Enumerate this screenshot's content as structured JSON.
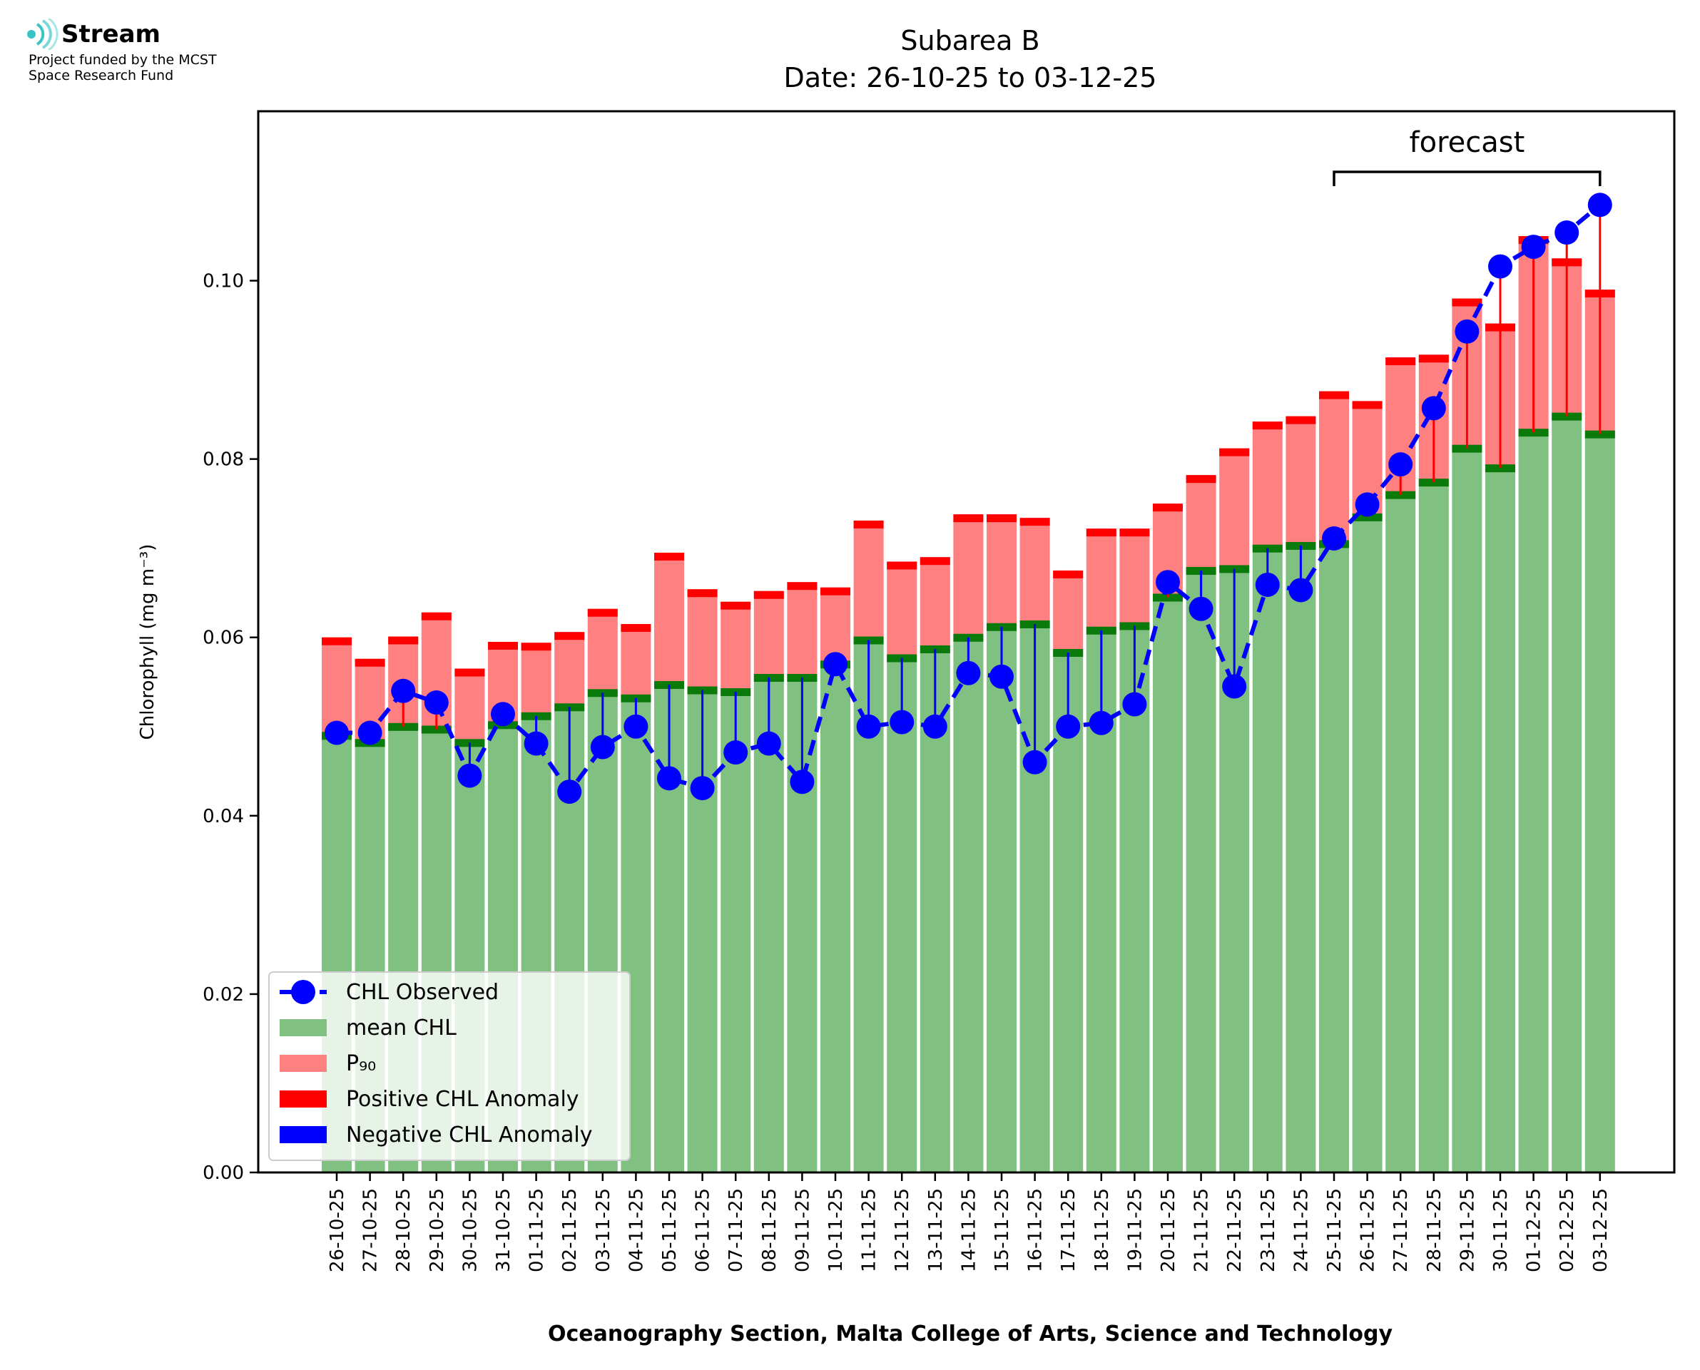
{
  "logo": {
    "brand": "Stream",
    "line1": "Project funded by the MCST",
    "line2": "Space Research Fund"
  },
  "chart_data": {
    "type": "bar",
    "title_line1": "Subarea B",
    "title_line2": "Date: 26-10-25 to 03-12-25",
    "xlabel": "Oceanography Section, Malta College of Arts, Science and Technology",
    "ylabel": "Chlorophyll (mg m⁻³)",
    "ylim": [
      0,
      0.119
    ],
    "yticks": [
      0.0,
      0.02,
      0.04,
      0.06,
      0.08,
      0.1
    ],
    "ytick_labels": [
      "0.00",
      "0.02",
      "0.04",
      "0.06",
      "0.08",
      "0.10"
    ],
    "forecast_label": "forecast",
    "forecast_start": "25-11-25",
    "forecast_end": "03-12-25",
    "legend": {
      "position": "lower left",
      "entries": [
        "CHL Observed",
        "mean CHL",
        "P₉₀",
        "Positive CHL Anomaly",
        "Negative CHL Anomaly"
      ]
    },
    "colors": {
      "mean": "#80c080",
      "mean_edge": "#0a7a0a",
      "p90": "#ff8080",
      "p90_edge": "#ff0000",
      "observed": "#0000ff",
      "positive_anomaly": "#ff0000",
      "negative_anomaly": "#0000ff"
    },
    "categories": [
      "26-10-25",
      "27-10-25",
      "28-10-25",
      "29-10-25",
      "30-10-25",
      "31-10-25",
      "01-11-25",
      "02-11-25",
      "03-11-25",
      "04-11-25",
      "05-11-25",
      "06-11-25",
      "07-11-25",
      "08-11-25",
      "09-11-25",
      "10-11-25",
      "11-11-25",
      "12-11-25",
      "13-11-25",
      "14-11-25",
      "15-11-25",
      "16-11-25",
      "17-11-25",
      "18-11-25",
      "19-11-25",
      "20-11-25",
      "21-11-25",
      "22-11-25",
      "23-11-25",
      "24-11-25",
      "25-11-25",
      "26-11-25",
      "27-11-25",
      "28-11-25",
      "29-11-25",
      "30-11-25",
      "01-12-25",
      "02-12-25",
      "03-12-25"
    ],
    "series": [
      {
        "name": "mean CHL",
        "values": [
          0.049,
          0.0482,
          0.05,
          0.0497,
          0.0482,
          0.0502,
          0.0512,
          0.0522,
          0.0538,
          0.0532,
          0.0547,
          0.0541,
          0.0539,
          0.0555,
          0.0555,
          0.057,
          0.0597,
          0.0577,
          0.0587,
          0.06,
          0.0612,
          0.0615,
          0.0583,
          0.0608,
          0.0613,
          0.0645,
          0.0675,
          0.0677,
          0.07,
          0.0703,
          0.0705,
          0.0735,
          0.076,
          0.0774,
          0.0812,
          0.079,
          0.083,
          0.0848,
          0.0828
        ]
      },
      {
        "name": "P₉₀",
        "values": [
          0.06,
          0.0576,
          0.0601,
          0.0628,
          0.0565,
          0.0595,
          0.0594,
          0.0606,
          0.0632,
          0.0615,
          0.0695,
          0.0654,
          0.064,
          0.0652,
          0.0662,
          0.0656,
          0.0731,
          0.0685,
          0.069,
          0.0738,
          0.0738,
          0.0734,
          0.0675,
          0.0722,
          0.0722,
          0.075,
          0.0782,
          0.0812,
          0.0842,
          0.0848,
          0.0876,
          0.0865,
          0.0914,
          0.0917,
          0.098,
          0.0952,
          0.105,
          0.1025,
          0.099
        ]
      },
      {
        "name": "CHL Observed",
        "values": [
          0.0493,
          0.0493,
          0.054,
          0.0527,
          0.0445,
          0.0514,
          0.0481,
          0.0427,
          0.0477,
          0.05,
          0.0442,
          0.0431,
          0.0471,
          0.0481,
          0.0438,
          0.057,
          0.05,
          0.0505,
          0.05,
          0.056,
          0.0556,
          0.046,
          0.05,
          0.0504,
          0.0525,
          0.0662,
          0.0632,
          0.0545,
          0.0659,
          0.0653,
          0.0711,
          0.0749,
          0.0794,
          0.0857,
          0.0943,
          0.1016,
          0.1038,
          0.1054,
          0.1085
        ]
      }
    ]
  }
}
